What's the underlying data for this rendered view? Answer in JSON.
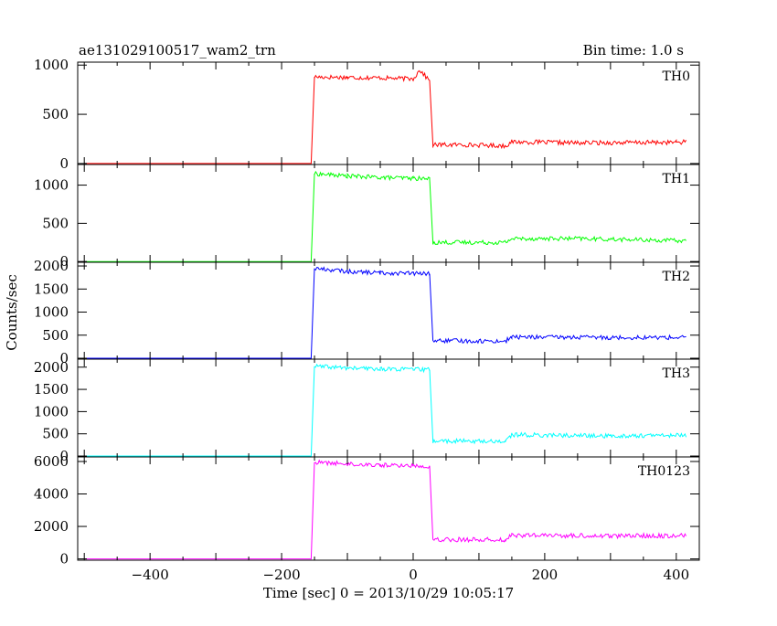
{
  "header": {
    "title": "ae131029100517_wam2_trn",
    "bin_time": "Bin time: 1.0 s"
  },
  "axes": {
    "xlabel": "Time [sec] 0 = 2013/10/29 10:05:17",
    "ylabel": "Counts/sec"
  },
  "chart_data": {
    "type": "line",
    "x_range": [
      -510,
      435
    ],
    "x_ticks": [
      -400,
      -200,
      0,
      200,
      400
    ],
    "x_tick_labels": [
      "−400",
      "−200",
      "0",
      "200",
      "400"
    ],
    "panels": [
      {
        "name": "TH0",
        "color": "#ff0000",
        "ylim": [
          -10,
          1030
        ],
        "yticks": [
          0,
          500,
          1000
        ],
        "ytick_labels": [
          "0",
          "500",
          "1000"
        ],
        "points": [
          [
            -500,
            0
          ],
          [
            -155,
            0
          ],
          [
            -150,
            880
          ],
          [
            -100,
            875
          ],
          [
            -50,
            870
          ],
          [
            0,
            860
          ],
          [
            10,
            950
          ],
          [
            25,
            840
          ],
          [
            30,
            190
          ],
          [
            80,
            190
          ],
          [
            140,
            180
          ],
          [
            150,
            220
          ],
          [
            250,
            210
          ],
          [
            400,
            215
          ],
          [
            415,
            220
          ]
        ]
      },
      {
        "name": "TH1",
        "color": "#00ff00",
        "ylim": [
          -10,
          1270
        ],
        "yticks": [
          0,
          500,
          1000
        ],
        "ytick_labels": [
          "0",
          "500",
          "1000"
        ],
        "points": [
          [
            -500,
            0
          ],
          [
            -155,
            0
          ],
          [
            -150,
            1150
          ],
          [
            -100,
            1120
          ],
          [
            -50,
            1100
          ],
          [
            0,
            1090
          ],
          [
            25,
            1080
          ],
          [
            30,
            250
          ],
          [
            140,
            250
          ],
          [
            150,
            300
          ],
          [
            250,
            300
          ],
          [
            415,
            270
          ]
        ]
      },
      {
        "name": "TH2",
        "color": "#0000ff",
        "ylim": [
          -20,
          2080
        ],
        "yticks": [
          0,
          500,
          1000,
          1500,
          2000
        ],
        "ytick_labels": [
          "0",
          "500",
          "1000",
          "1500",
          "2000"
        ],
        "points": [
          [
            -500,
            0
          ],
          [
            -155,
            0
          ],
          [
            -150,
            1950
          ],
          [
            -100,
            1880
          ],
          [
            -50,
            1850
          ],
          [
            0,
            1840
          ],
          [
            25,
            1830
          ],
          [
            30,
            380
          ],
          [
            140,
            370
          ],
          [
            150,
            460
          ],
          [
            300,
            450
          ],
          [
            415,
            450
          ]
        ]
      },
      {
        "name": "TH3",
        "color": "#00ffff",
        "ylim": [
          -20,
          2180
        ],
        "yticks": [
          0,
          500,
          1000,
          1500,
          2000
        ],
        "ytick_labels": [
          "0",
          "500",
          "1000",
          "1500",
          "2000"
        ],
        "points": [
          [
            -500,
            0
          ],
          [
            -155,
            0
          ],
          [
            -150,
            2020
          ],
          [
            -100,
            1980
          ],
          [
            -50,
            1960
          ],
          [
            0,
            1950
          ],
          [
            25,
            1940
          ],
          [
            30,
            340
          ],
          [
            140,
            330
          ],
          [
            150,
            480
          ],
          [
            300,
            450
          ],
          [
            415,
            470
          ]
        ]
      },
      {
        "name": "TH0123",
        "color": "#ff00ff",
        "ylim": [
          -80,
          6280
        ],
        "yticks": [
          0,
          2000,
          4000,
          6000
        ],
        "ytick_labels": [
          "0",
          "2000",
          "4000",
          "6000"
        ],
        "points": [
          [
            -500,
            0
          ],
          [
            -155,
            0
          ],
          [
            -150,
            5950
          ],
          [
            -100,
            5850
          ],
          [
            -50,
            5780
          ],
          [
            0,
            5740
          ],
          [
            25,
            5720
          ],
          [
            30,
            1200
          ],
          [
            140,
            1180
          ],
          [
            150,
            1450
          ],
          [
            300,
            1420
          ],
          [
            415,
            1430
          ]
        ]
      }
    ]
  }
}
